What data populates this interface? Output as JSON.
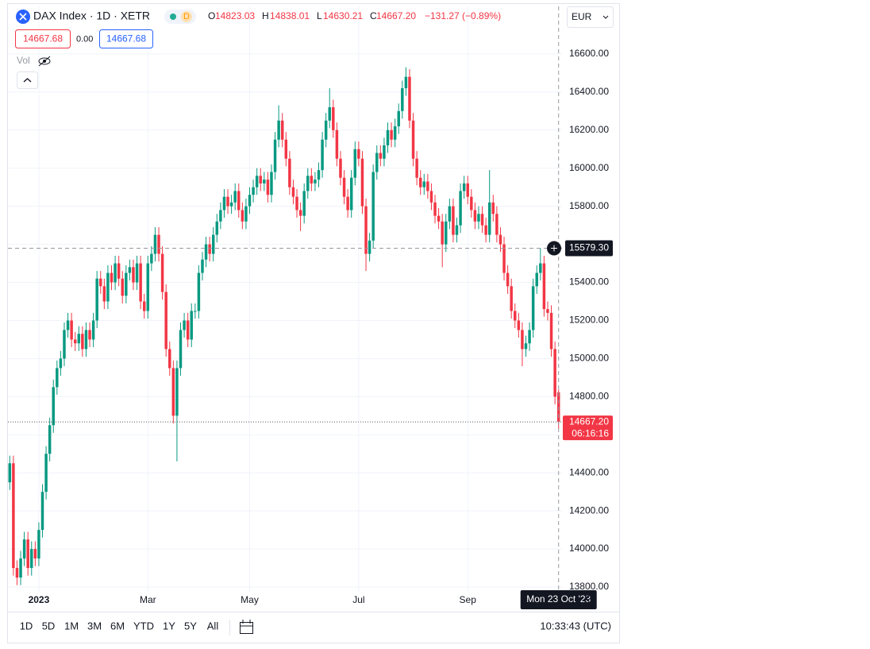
{
  "toolbar": {
    "symbol": "DAX Index · 1D · XETR",
    "badge": "D",
    "ohlc_letters": [
      "O",
      "H",
      "L",
      "C"
    ],
    "change": "−131.27 (−0.89%)",
    "currency": "EUR",
    "bid": "14667.68",
    "spread": "0.00",
    "ask": "14667.68",
    "volume": "Vol"
  },
  "chart_data": {
    "type": "candlestick",
    "categories": [
      null,
      null,
      null,
      null,
      null,
      null,
      null,
      null,
      "2023",
      null,
      null,
      null,
      null,
      null,
      null,
      null,
      null,
      null,
      null,
      null,
      null,
      null,
      null,
      null,
      null,
      null,
      null,
      null,
      null,
      null,
      null,
      null,
      null,
      null,
      null,
      null,
      null,
      null,
      "Mar",
      null,
      null,
      null,
      null,
      null,
      null,
      null,
      null,
      null,
      null,
      null,
      null,
      null,
      null,
      null,
      null,
      null,
      null,
      null,
      null,
      null,
      null,
      null,
      null,
      null,
      null,
      null,
      "May",
      null,
      null,
      null,
      null,
      null,
      null,
      null,
      null,
      null,
      null,
      null,
      null,
      null,
      null,
      null,
      null,
      null,
      null,
      null,
      null,
      null,
      null,
      null,
      null,
      null,
      null,
      null,
      null,
      null,
      "Jul",
      null,
      null,
      null,
      null,
      null,
      null,
      null,
      null,
      null,
      null,
      null,
      null,
      null,
      null,
      null,
      null,
      null,
      null,
      null,
      null,
      null,
      null,
      null,
      null,
      null,
      null,
      null,
      null,
      null,
      "Sep",
      null,
      null,
      null,
      null,
      null,
      null,
      null,
      null,
      null,
      null,
      null,
      null,
      null,
      null,
      null,
      null,
      null,
      null,
      null,
      null,
      null,
      null,
      null,
      null,
      null
    ],
    "open": [
      14350,
      14450,
      13900,
      13850,
      13950,
      14050,
      13900,
      14000,
      13950,
      14100,
      14300,
      14500,
      14650,
      14850,
      14950,
      15000,
      15150,
      15200,
      15100,
      15080,
      15130,
      15050,
      15150,
      15100,
      15200,
      15420,
      15380,
      15300,
      15450,
      15400,
      15500,
      15420,
      15330,
      15450,
      15480,
      15400,
      15500,
      15300,
      15250,
      15500,
      15550,
      15650,
      15550,
      15350,
      15050,
      14950,
      14700,
      14950,
      15150,
      15200,
      15100,
      15250,
      15250,
      15450,
      15520,
      15600,
      15550,
      15650,
      15720,
      15780,
      15850,
      15800,
      15820,
      15880,
      15780,
      15720,
      15800,
      15860,
      15900,
      15960,
      15920,
      15940,
      15860,
      15980,
      16150,
      16250,
      16150,
      16050,
      15900,
      15850,
      15780,
      15750,
      15880,
      15960,
      15920,
      15940,
      15990,
      16150,
      16250,
      16320,
      16200,
      16050,
      15950,
      15850,
      15780,
      15950,
      16100,
      16050,
      15800,
      15550,
      15620,
      15980,
      16080,
      16050,
      16120,
      16200,
      16150,
      16220,
      16300,
      16420,
      16480,
      16250,
      16050,
      15950,
      15900,
      15930,
      15880,
      15820,
      15750,
      15720,
      15600,
      15720,
      15800,
      15650,
      15700,
      15880,
      15920,
      15850,
      15780,
      15720,
      15760,
      15700,
      15650,
      15820,
      15760,
      15650,
      15600,
      15450,
      15380,
      15250,
      15200,
      15150,
      15050,
      15080,
      15150,
      15380,
      15450,
      15500,
      15260,
      15240,
      15050,
      14823.03
    ],
    "high": [
      14490,
      14490,
      13940,
      13990,
      14090,
      14090,
      14040,
      14040,
      14140,
      14340,
      14540,
      14690,
      14890,
      14990,
      15040,
      15190,
      15240,
      15240,
      15140,
      15170,
      15170,
      15190,
      15190,
      15240,
      15460,
      15460,
      15420,
      15490,
      15490,
      15540,
      15540,
      15460,
      15490,
      15520,
      15520,
      15540,
      15540,
      15340,
      15540,
      15590,
      15690,
      15690,
      15590,
      15390,
      15090,
      14990,
      14990,
      15190,
      15240,
      15240,
      15290,
      15290,
      15490,
      15560,
      15640,
      15640,
      15690,
      15760,
      15820,
      15890,
      15890,
      15860,
      15920,
      15920,
      15820,
      15840,
      15900,
      15940,
      16000,
      16000,
      15980,
      15980,
      16020,
      16190,
      16330,
      16290,
      16190,
      16090,
      15940,
      15890,
      15820,
      15920,
      16000,
      16000,
      15980,
      16030,
      16190,
      16290,
      16420,
      16360,
      16240,
      16090,
      15990,
      15890,
      15990,
      16140,
      16140,
      16090,
      15840,
      15660,
      16020,
      16120,
      16120,
      16160,
      16240,
      16240,
      16260,
      16340,
      16460,
      16530,
      16520,
      16290,
      16090,
      15990,
      15970,
      15970,
      15920,
      15860,
      15790,
      15760,
      15760,
      15840,
      15840,
      15740,
      15920,
      15960,
      15960,
      15890,
      15820,
      15800,
      15800,
      15740,
      15990,
      15860,
      15800,
      15690,
      15640,
      15490,
      15420,
      15290,
      15240,
      15190,
      15120,
      15190,
      15420,
      15490,
      15580,
      15540,
      15300,
      15280,
      15090,
      14838.01
    ],
    "low": [
      14310,
      13860,
      13810,
      13810,
      13910,
      13860,
      13860,
      13910,
      13910,
      14060,
      14260,
      14460,
      14610,
      14810,
      14910,
      14960,
      15110,
      15060,
      15040,
      15040,
      15010,
      15010,
      15060,
      15060,
      15160,
      15340,
      15260,
      15260,
      15360,
      15360,
      15380,
      15290,
      15290,
      15410,
      15360,
      15360,
      15260,
      15210,
      15210,
      15460,
      15510,
      15510,
      15310,
      15010,
      14910,
      14660,
      14460,
      14910,
      15110,
      15060,
      15060,
      15210,
      15210,
      15410,
      15480,
      15510,
      15510,
      15610,
      15680,
      15740,
      15760,
      15760,
      15780,
      15740,
      15680,
      15680,
      15760,
      15820,
      15860,
      15880,
      15880,
      15820,
      15820,
      15940,
      16110,
      16110,
      16010,
      15860,
      15810,
      15740,
      15670,
      15710,
      15840,
      15880,
      15880,
      15900,
      15950,
      16110,
      16210,
      16160,
      16010,
      15910,
      15810,
      15740,
      15740,
      15910,
      16010,
      15760,
      15460,
      15510,
      15580,
      15940,
      16010,
      16010,
      16080,
      16110,
      16110,
      16180,
      16260,
      16380,
      16210,
      16010,
      15910,
      15860,
      15860,
      15840,
      15780,
      15710,
      15680,
      15480,
      15560,
      15680,
      15610,
      15610,
      15660,
      15840,
      15810,
      15740,
      15680,
      15680,
      15660,
      15610,
      15610,
      15720,
      15610,
      15560,
      15410,
      15340,
      15210,
      15160,
      15110,
      14960,
      15010,
      15040,
      15110,
      15340,
      15410,
      15220,
      15200,
      15010,
      14760,
      14630.21
    ],
    "close": [
      14450,
      13900,
      13850,
      13950,
      14050,
      13900,
      14000,
      13950,
      14100,
      14300,
      14500,
      14650,
      14850,
      14950,
      15000,
      15150,
      15200,
      15100,
      15080,
      15130,
      15050,
      15150,
      15100,
      15200,
      15420,
      15380,
      15300,
      15450,
      15400,
      15500,
      15420,
      15330,
      15450,
      15480,
      15400,
      15500,
      15300,
      15250,
      15500,
      15550,
      15650,
      15550,
      15350,
      15050,
      14950,
      14700,
      14950,
      15150,
      15200,
      15100,
      15250,
      15250,
      15450,
      15520,
      15600,
      15550,
      15650,
      15720,
      15780,
      15850,
      15800,
      15820,
      15880,
      15780,
      15720,
      15800,
      15860,
      15900,
      15960,
      15920,
      15940,
      15860,
      15980,
      16150,
      16250,
      16150,
      16050,
      15900,
      15850,
      15780,
      15750,
      15880,
      15960,
      15920,
      15940,
      15990,
      16150,
      16250,
      16320,
      16200,
      16050,
      15950,
      15850,
      15780,
      15950,
      16100,
      16050,
      15800,
      15550,
      15620,
      15980,
      16080,
      16050,
      16120,
      16200,
      16150,
      16220,
      16300,
      16420,
      16480,
      16250,
      16050,
      15950,
      15900,
      15930,
      15880,
      15820,
      15750,
      15720,
      15600,
      15720,
      15800,
      15650,
      15700,
      15880,
      15920,
      15850,
      15780,
      15720,
      15760,
      15700,
      15650,
      15820,
      15760,
      15650,
      15600,
      15450,
      15380,
      15250,
      15200,
      15150,
      15050,
      15080,
      15150,
      15380,
      15450,
      15500,
      15260,
      15240,
      15050,
      14800,
      14667.2
    ],
    "up_color": "#089981",
    "down_color": "#f23645",
    "last_price_label": "14667.20",
    "countdown": "06:16:16",
    "crosshair": {
      "value": 15579.3,
      "label": "15579.30"
    },
    "crosshair_date": "Mon 23 Oct '23",
    "ylim": [
      13775,
      16850
    ],
    "yticks": [
      {
        "value": 13800,
        "label": "13800.00"
      },
      {
        "value": 14000,
        "label": "14000.00"
      },
      {
        "value": 14200,
        "label": "14200.00"
      },
      {
        "value": 14400,
        "label": "14400.00"
      },
      {
        "value": 14600,
        "label": "14600.00"
      },
      {
        "value": 14800,
        "label": "14800.00"
      },
      {
        "value": 15000,
        "label": "15000.00"
      },
      {
        "value": 15200,
        "label": "15200.00"
      },
      {
        "value": 15400,
        "label": "15400.00"
      },
      {
        "value": 15600,
        "label": "15600.00"
      },
      {
        "value": 15800,
        "label": "15800.00"
      },
      {
        "value": 16000,
        "label": "16000.00"
      },
      {
        "value": 16200,
        "label": "16200.00"
      },
      {
        "value": 16400,
        "label": "16400.00"
      },
      {
        "value": 16600,
        "label": "16600.00"
      }
    ],
    "grid": true
  },
  "timeframes": [
    "1D",
    "5D",
    "1M",
    "3M",
    "6M",
    "YTD",
    "1Y",
    "5Y",
    "All"
  ],
  "clock": "10:33:43 (UTC)"
}
